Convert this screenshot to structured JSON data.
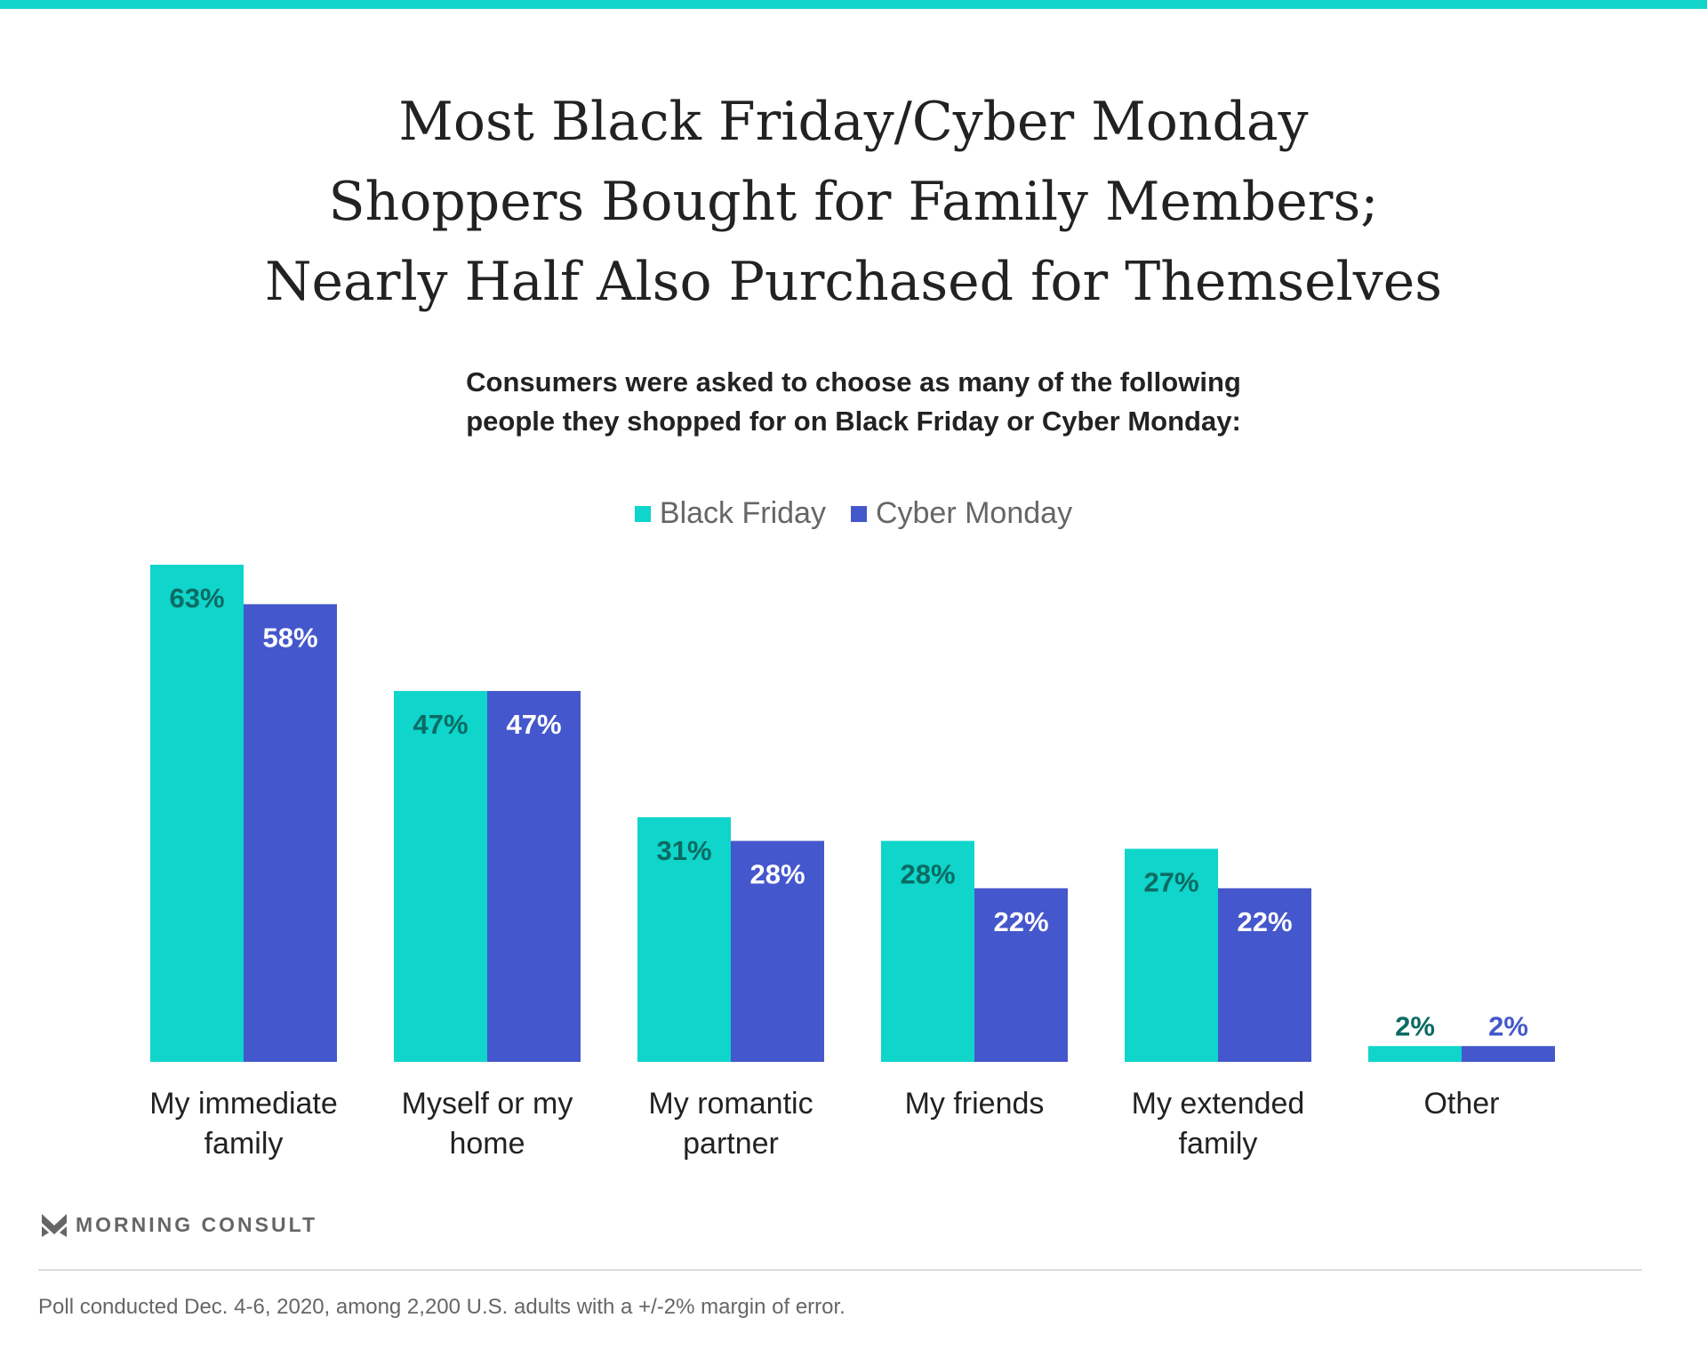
{
  "title_lines": [
    "Most Black Friday/Cyber Monday",
    "Shoppers Bought for Family Members;",
    "Nearly Half Also Purchased for Themselves"
  ],
  "subtitle_lines": [
    "Consumers were asked to choose as many of the following",
    "people they shopped for on Black Friday or Cyber Monday:"
  ],
  "colors": {
    "black_friday": "#0fd5ca",
    "cyber_monday": "#4557cc",
    "bf_label": "#0b6b64",
    "cm_label": "#ffffff",
    "accent": "#12d4c8"
  },
  "logo": {
    "text": "MORNING CONSULT",
    "icon": "morning-consult-m-icon"
  },
  "footnote": "Poll conducted Dec. 4-6, 2020, among 2,200 U.S. adults with a +/-2% margin of error.",
  "chart_data": {
    "type": "bar",
    "title": "Most Black Friday/Cyber Monday Shoppers Bought for Family Members; Nearly Half Also Purchased for Themselves",
    "categories": [
      [
        "My immediate",
        "family"
      ],
      [
        "Myself or my",
        "home"
      ],
      [
        "My romantic",
        "partner"
      ],
      [
        "My friends"
      ],
      [
        "My extended",
        "family"
      ],
      [
        "Other"
      ]
    ],
    "series": [
      {
        "name": "Black Friday",
        "values": [
          63,
          47,
          31,
          28,
          27,
          2
        ],
        "labels": [
          "63%",
          "47%",
          "31%",
          "28%",
          "27%",
          "2%"
        ]
      },
      {
        "name": "Cyber Monday",
        "values": [
          58,
          47,
          28,
          22,
          22,
          2
        ],
        "labels": [
          "58%",
          "47%",
          "28%",
          "22%",
          "22%",
          "2%"
        ]
      }
    ],
    "xlabel": "",
    "ylabel": "",
    "ylim": [
      0,
      63
    ],
    "grid": false,
    "legend": "top-center"
  }
}
